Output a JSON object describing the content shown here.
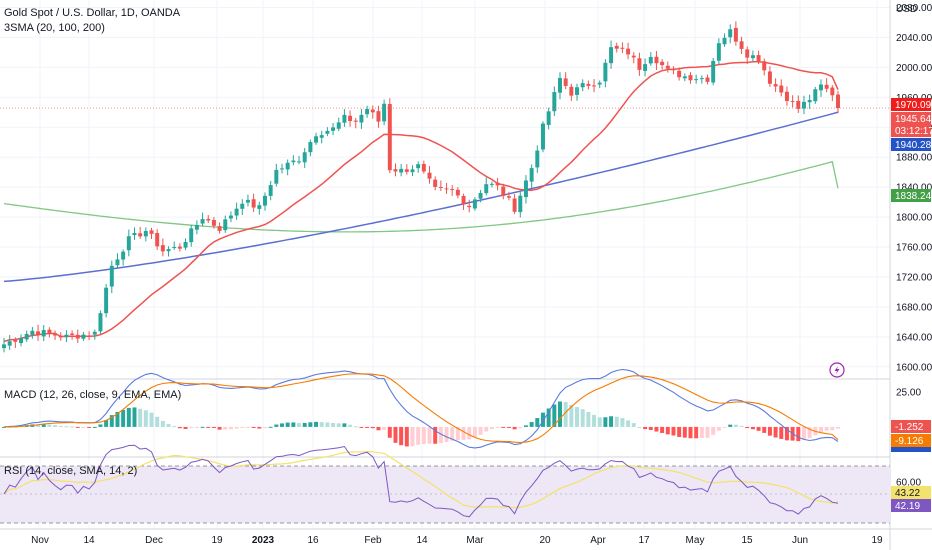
{
  "header": {
    "symbol": "Gold Spot / U.S. Dollar, 1D, OANDA",
    "indicator": "3SMA (20, 100, 200)",
    "currency": "USD"
  },
  "macd_panel": {
    "title": "MACD (12, 26, close, 9, EMA, EMA)"
  },
  "rsi_panel": {
    "title": "RSI (14, close, SMA, 14, 2)"
  },
  "price_tags": {
    "close": "1945.645",
    "countdown": "03:12:17",
    "sma20": "1970.098",
    "sma100": "1940.284",
    "sma200": "1838.247",
    "macd_hist": "-1.252",
    "macd_line": "-9.126",
    "rsi_sma": "43.22",
    "rsi": "42.19"
  },
  "colors": {
    "up": "#26a69a",
    "down": "#ef5350",
    "sma20": "#ef5350",
    "sma100": "#5b6fd0",
    "sma200": "#81c784",
    "macd": "#5b7be0",
    "signal": "#f57c00",
    "rsi": "#7e57c2",
    "rsi_ma": "#f3e26b",
    "rsi_band": "#ede7f6"
  },
  "chart_data": [
    {
      "type": "candlestick",
      "title": "Gold Spot / U.S. Dollar, 1D, OANDA",
      "ylim": [
        1585,
        2090
      ],
      "y_ticks": [
        1600,
        1640,
        1680,
        1720,
        1760,
        1800,
        1840,
        1880,
        1920,
        1960,
        2000,
        2040,
        2080
      ],
      "x_ticks": [
        "Nov",
        "14",
        "Dec",
        "19",
        "2023",
        "16",
        "Feb",
        "14",
        "Mar",
        "20",
        "Apr",
        "17",
        "May",
        "15",
        "Jun",
        "19"
      ],
      "price_anchors": [
        [
          0,
          1630
        ],
        [
          5,
          1648
        ],
        [
          11,
          1640
        ],
        [
          16,
          1645
        ],
        [
          19,
          1735
        ],
        [
          22,
          1770
        ],
        [
          25,
          1782
        ],
        [
          28,
          1755
        ],
        [
          31,
          1760
        ],
        [
          35,
          1800
        ],
        [
          38,
          1785
        ],
        [
          42,
          1822
        ],
        [
          45,
          1812
        ],
        [
          48,
          1862
        ],
        [
          52,
          1878
        ],
        [
          55,
          1912
        ],
        [
          58,
          1918
        ],
        [
          60,
          1932
        ],
        [
          62,
          1928
        ],
        [
          64,
          1945
        ],
        [
          66,
          1928
        ],
        [
          67,
          1952
        ],
        [
          68,
          1865
        ],
        [
          70,
          1862
        ],
        [
          73,
          1868
        ],
        [
          76,
          1836
        ],
        [
          79,
          1835
        ],
        [
          82,
          1815
        ],
        [
          85,
          1845
        ],
        [
          87,
          1840
        ],
        [
          90,
          1812
        ],
        [
          93,
          1866
        ],
        [
          95,
          1920
        ],
        [
          98,
          1985
        ],
        [
          100,
          1966
        ],
        [
          102,
          1975
        ],
        [
          105,
          1983
        ],
        [
          107,
          2025
        ],
        [
          110,
          2020
        ],
        [
          112,
          2000
        ],
        [
          114,
          2018
        ],
        [
          117,
          1995
        ],
        [
          120,
          1988
        ],
        [
          124,
          1985
        ],
        [
          126,
          2035
        ],
        [
          128,
          2048
        ],
        [
          131,
          2018
        ],
        [
          133,
          2012
        ],
        [
          135,
          1982
        ],
        [
          138,
          1960
        ],
        [
          140,
          1945
        ],
        [
          142,
          1958
        ],
        [
          144,
          1975
        ],
        [
          146,
          1965
        ],
        [
          147,
          1945
        ]
      ],
      "n_bars": 148,
      "series": [
        {
          "name": "SMA 20",
          "last": 1970.098
        },
        {
          "name": "SMA 100",
          "last": 1940.284
        },
        {
          "name": "SMA 200",
          "last": 1838.247
        }
      ],
      "last_close": 1945.645
    },
    {
      "type": "bar",
      "title": "MACD (12, 26, close, 9, EMA, EMA)",
      "ylim": [
        -20,
        32
      ],
      "y_ticks": [
        25
      ],
      "last_histogram": -1.252,
      "last_macd": -9.126
    },
    {
      "type": "line",
      "title": "RSI (14, close, SMA, 14, 2)",
      "ylim": [
        22,
        78
      ],
      "y_ticks": [
        60
      ],
      "bands": [
        30,
        70
      ],
      "last_rsi": 42.19,
      "last_rsi_sma": 43.22
    }
  ]
}
